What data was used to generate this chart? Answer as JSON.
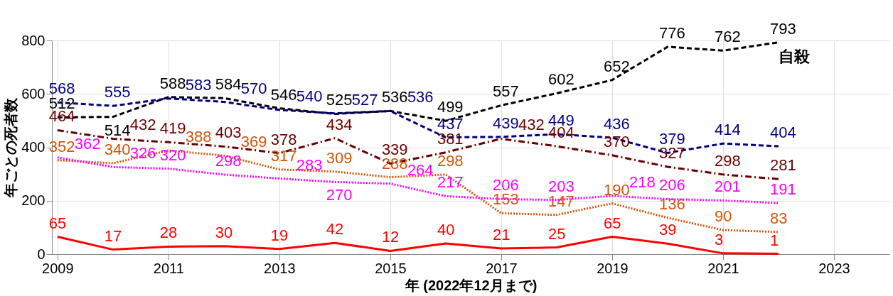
{
  "chart_data": {
    "type": "line",
    "xlabel": "年 (2022年12月まで)",
    "ylabel": "年ごとの死者数",
    "x": [
      2009,
      2010,
      2011,
      2012,
      2013,
      2014,
      2015,
      2016,
      2017,
      2018,
      2019,
      2020,
      2021,
      2022
    ],
    "xlim": [
      2008.9,
      2024
    ],
    "xticks": [
      2009,
      2011,
      2013,
      2015,
      2017,
      2019,
      2021,
      2023
    ],
    "ylim": [
      0,
      800
    ],
    "yticks": [
      0,
      200,
      400,
      600,
      800
    ],
    "grid": true,
    "data_labels": true,
    "marker": "none",
    "series": [
      {
        "name": "自殺",
        "color": "#000000",
        "line_style": "dashed",
        "values": [
          512,
          514,
          588,
          584,
          546,
          525,
          536,
          499,
          557,
          602,
          652,
          776,
          762,
          793
        ]
      },
      {
        "color": "#000080",
        "line_style": "dashed",
        "values": [
          568,
          555,
          583,
          570,
          540,
          527,
          536,
          437,
          439,
          449,
          436,
          379,
          414,
          404
        ]
      },
      {
        "color": "#6b0000",
        "line_style": "dashdot",
        "values": [
          464,
          432,
          419,
          403,
          378,
          434,
          339,
          381,
          432,
          404,
          370,
          327,
          298,
          281
        ]
      },
      {
        "color": "#d2540a",
        "line_style": "dotted",
        "values": [
          352,
          340,
          388,
          369,
          317,
          309,
          288,
          298,
          153,
          147,
          190,
          136,
          90,
          83
        ]
      },
      {
        "color": "#ff00ff",
        "line_style": "dotted",
        "values": [
          362,
          326,
          320,
          298,
          283,
          270,
          264,
          217,
          206,
          203,
          218,
          206,
          201,
          191
        ]
      },
      {
        "color": "#ff0000",
        "line_style": "solid",
        "values": [
          65,
          17,
          28,
          30,
          19,
          42,
          12,
          40,
          21,
          25,
          65,
          39,
          3,
          1
        ]
      }
    ]
  }
}
